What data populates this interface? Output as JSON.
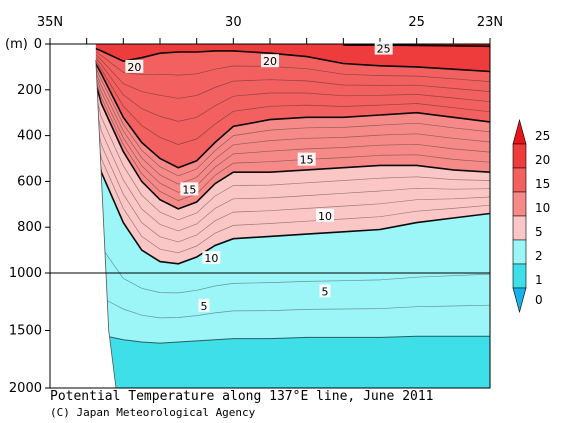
{
  "title": "Potential Temperature along 137°E line, June 2011",
  "credit": "(C) Japan Meteorological Agency",
  "chart_data": {
    "type": "heatmap",
    "title": "Potential Temperature along 137°E line, June 2011",
    "xlabel": "",
    "ylabel": "(m)",
    "x_ticks": [
      "35N",
      "30",
      "25",
      "23N"
    ],
    "x_tick_values": [
      35,
      30,
      25,
      23
    ],
    "y_ticks": [
      "0",
      "200",
      "400",
      "600",
      "800",
      "1000",
      "1500",
      "2000"
    ],
    "y_tick_values": [
      0,
      200,
      400,
      600,
      800,
      1000,
      1500,
      2000
    ],
    "y_scale": "piecewise linear: 0-1000 m upper panel, 1000-2000 m compressed lower panel",
    "xlim": [
      35,
      23
    ],
    "ylim": [
      0,
      2000
    ],
    "colorbar": {
      "levels": [
        25,
        20,
        15,
        10,
        5,
        2,
        1,
        0
      ],
      "labels": [
        "25",
        "20",
        "15",
        "10",
        "5",
        "2",
        "1",
        "0"
      ],
      "colors": [
        "#e8141a",
        "#ee3b3c",
        "#f2605f",
        "#f58a89",
        "#fbc6c6",
        "#9cf5f7",
        "#3edfe9",
        "#18b2ea"
      ]
    },
    "isotherm_depths": {
      "latitudes": [
        34.0,
        33.6,
        33.0,
        32.5,
        32.0,
        31.5,
        31.0,
        30.5,
        30.0,
        29.0,
        28.0,
        27.0,
        26.0,
        25.0,
        24.0,
        23.0
      ],
      "series": [
        {
          "name": "25",
          "values": [
            null,
            null,
            null,
            null,
            null,
            null,
            null,
            null,
            null,
            null,
            null,
            5,
            5,
            6,
            8,
            10
          ]
        },
        {
          "name": "20",
          "values": [
            5,
            30,
            75,
            60,
            40,
            35,
            35,
            30,
            30,
            40,
            55,
            85,
            95,
            100,
            110,
            120
          ]
        },
        {
          "name": "15",
          "values": [
            15,
            130,
            320,
            430,
            500,
            540,
            510,
            430,
            360,
            330,
            320,
            320,
            310,
            300,
            320,
            340
          ]
        },
        {
          "name": "10",
          "values": [
            30,
            260,
            470,
            600,
            680,
            720,
            690,
            610,
            560,
            560,
            550,
            540,
            530,
            530,
            550,
            560
          ]
        },
        {
          "name": "5",
          "values": [
            180,
            560,
            780,
            900,
            950,
            960,
            930,
            880,
            850,
            840,
            830,
            820,
            810,
            780,
            760,
            740
          ]
        },
        {
          "name": "2",
          "values": [
            1500,
            1540,
            1580,
            1600,
            1610,
            1600,
            1590,
            1580,
            1570,
            1570,
            1560,
            1560,
            1560,
            1550,
            1550,
            1550
          ]
        }
      ]
    },
    "contour_labels": [
      {
        "text": "25",
        "lat": 25.9,
        "depth": 20
      },
      {
        "text": "20",
        "lat": 32.7,
        "depth": 100
      },
      {
        "text": "20",
        "lat": 29.0,
        "depth": 75
      },
      {
        "text": "15",
        "lat": 28.0,
        "depth": 505
      },
      {
        "text": "15",
        "lat": 31.2,
        "depth": 635
      },
      {
        "text": "10",
        "lat": 27.5,
        "depth": 750
      },
      {
        "text": "10",
        "lat": 30.6,
        "depth": 935
      },
      {
        "text": "5",
        "lat": 27.5,
        "depth": 1160
      },
      {
        "text": "5",
        "lat": 30.8,
        "depth": 1285
      }
    ]
  }
}
